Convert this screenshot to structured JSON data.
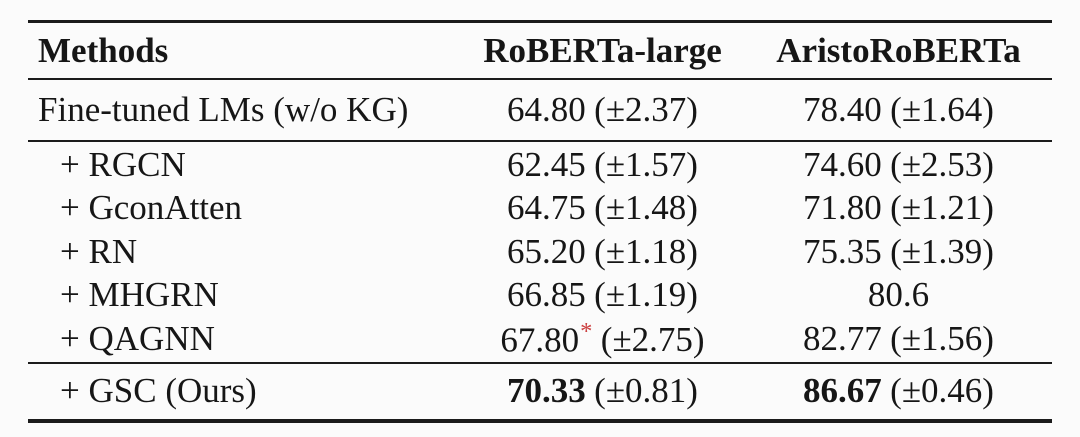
{
  "colors": {
    "background": "#fbfbfb",
    "text": "#161616",
    "rule": "#1b1b1b",
    "asterisk_red": "#cc4040"
  },
  "table": {
    "header": {
      "methods": "Methods",
      "roberta": "RoBERTa-large",
      "aristo": "AristoRoBERTa"
    },
    "rows": [
      {
        "method": "Fine-tuned LMs (w/o KG)",
        "cells": [
          {
            "value": "64.80",
            "note": "",
            "std": "(±2.37)"
          },
          {
            "value": "78.40",
            "note": "",
            "std": "(±1.64)"
          }
        ]
      },
      {
        "method": "+ RGCN",
        "cells": [
          {
            "value": "62.45",
            "note": "",
            "std": "(±1.57)"
          },
          {
            "value": "74.60",
            "note": "",
            "std": "(±2.53)"
          }
        ]
      },
      {
        "method": "+ GconAtten",
        "cells": [
          {
            "value": "64.75",
            "note": "",
            "std": "(±1.48)"
          },
          {
            "value": "71.80",
            "note": "",
            "std": "(±1.21)"
          }
        ]
      },
      {
        "method": "+ RN",
        "cells": [
          {
            "value": "65.20",
            "note": "",
            "std": "(±1.18)"
          },
          {
            "value": "75.35",
            "note": "",
            "std": "(±1.39)"
          }
        ]
      },
      {
        "method": "+ MHGRN",
        "cells": [
          {
            "value": "66.85",
            "note": "",
            "std": "(±1.19)"
          },
          {
            "value": "80.6",
            "note": "",
            "std": ""
          }
        ]
      },
      {
        "method": "+ QAGNN",
        "cells": [
          {
            "value": "67.80",
            "note": "*",
            "std": "(±2.75)"
          },
          {
            "value": "82.77",
            "note": "",
            "std": "(±1.56)"
          }
        ]
      },
      {
        "method": "+ GSC (Ours)",
        "cells": [
          {
            "value": "70.33",
            "note": "",
            "std": "(±0.81)"
          },
          {
            "value": "86.67",
            "note": "",
            "std": "(±0.46)"
          }
        ]
      }
    ]
  }
}
